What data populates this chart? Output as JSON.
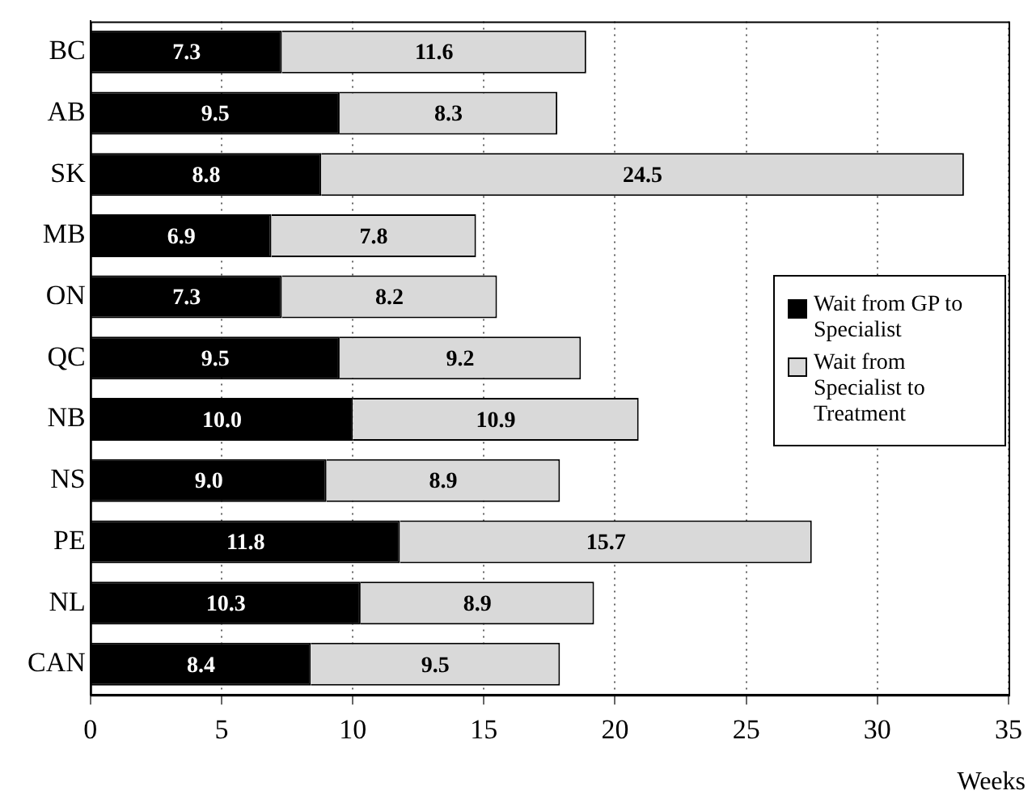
{
  "chart_data": {
    "type": "bar",
    "orientation": "horizontal",
    "stacked": true,
    "xlabel": "Weeks",
    "categories": [
      "BC",
      "AB",
      "SK",
      "MB",
      "ON",
      "QC",
      "NB",
      "NS",
      "PE",
      "NL",
      "CAN"
    ],
    "series": [
      {
        "name": "Wait from GP to Specialist",
        "color": "#000000",
        "values": [
          7.3,
          9.5,
          8.8,
          6.9,
          7.3,
          9.5,
          10.0,
          9.0,
          11.8,
          10.3,
          8.4
        ]
      },
      {
        "name": "Wait from Specialist to Treatment",
        "color": "#d9d9d9",
        "values": [
          11.6,
          8.3,
          24.5,
          7.8,
          8.2,
          9.2,
          10.9,
          8.9,
          15.7,
          8.9,
          9.5
        ]
      }
    ],
    "value_labels": [
      [
        "7.3",
        "9.5",
        "8.8",
        "6.9",
        "7.3",
        "9.5",
        "10.0",
        "9.0",
        "11.8",
        "10.3",
        "8.4"
      ],
      [
        "11.6",
        "8.3",
        "24.5",
        "7.8",
        "8.2",
        "9.2",
        "10.9",
        "8.9",
        "15.7",
        "8.9",
        "9.5"
      ]
    ],
    "xlim": [
      0,
      35
    ],
    "xticks": [
      0,
      5,
      10,
      15,
      20,
      25,
      30,
      35
    ],
    "grid": "x",
    "legend": "right"
  }
}
